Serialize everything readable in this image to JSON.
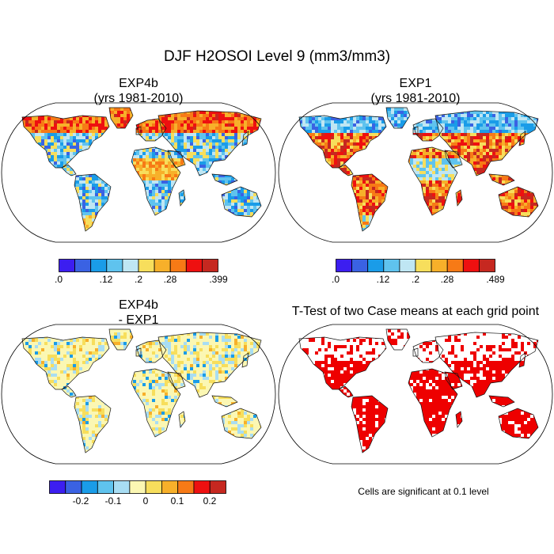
{
  "title": "DJF H2OSOI Level 9 (mm3/mm3)",
  "colors": {
    "seq": [
      "#3c1ef0",
      "#3a62e3",
      "#1a9ce8",
      "#5fc3ee",
      "#bfe6f3",
      "#f7de5c",
      "#f7b02a",
      "#f77a16",
      "#ee1010",
      "#c62820"
    ],
    "div": [
      "#3c1ef0",
      "#3a62e3",
      "#1a9ce8",
      "#5fc3ee",
      "#a8ddf3",
      "#fbf7b3",
      "#f7de5c",
      "#f7b02a",
      "#f77a16",
      "#ee1010",
      "#c62820"
    ],
    "signif": "#ee0000",
    "coast": "#111111"
  },
  "panels": [
    {
      "title_l1": "EXP4b",
      "title_l2": "(yrs 1981-2010)",
      "labels": [
        ".0",
        ".12",
        ".2",
        ".28",
        ".399"
      ]
    },
    {
      "title_l1": "EXP1",
      "title_l2": "(yrs 1981-2010)",
      "labels": [
        ".0",
        ".12",
        ".2",
        ".28",
        ".489"
      ]
    },
    {
      "title_l1": "EXP4b",
      "title_l2": "- EXP1",
      "labels": [
        "-0.2",
        "-0.1",
        "0",
        "0.1",
        "0.2"
      ]
    },
    {
      "title_l1": "T-Test of two Case means at each grid point",
      "note": "Cells are significant at 0.1 level"
    }
  ]
}
